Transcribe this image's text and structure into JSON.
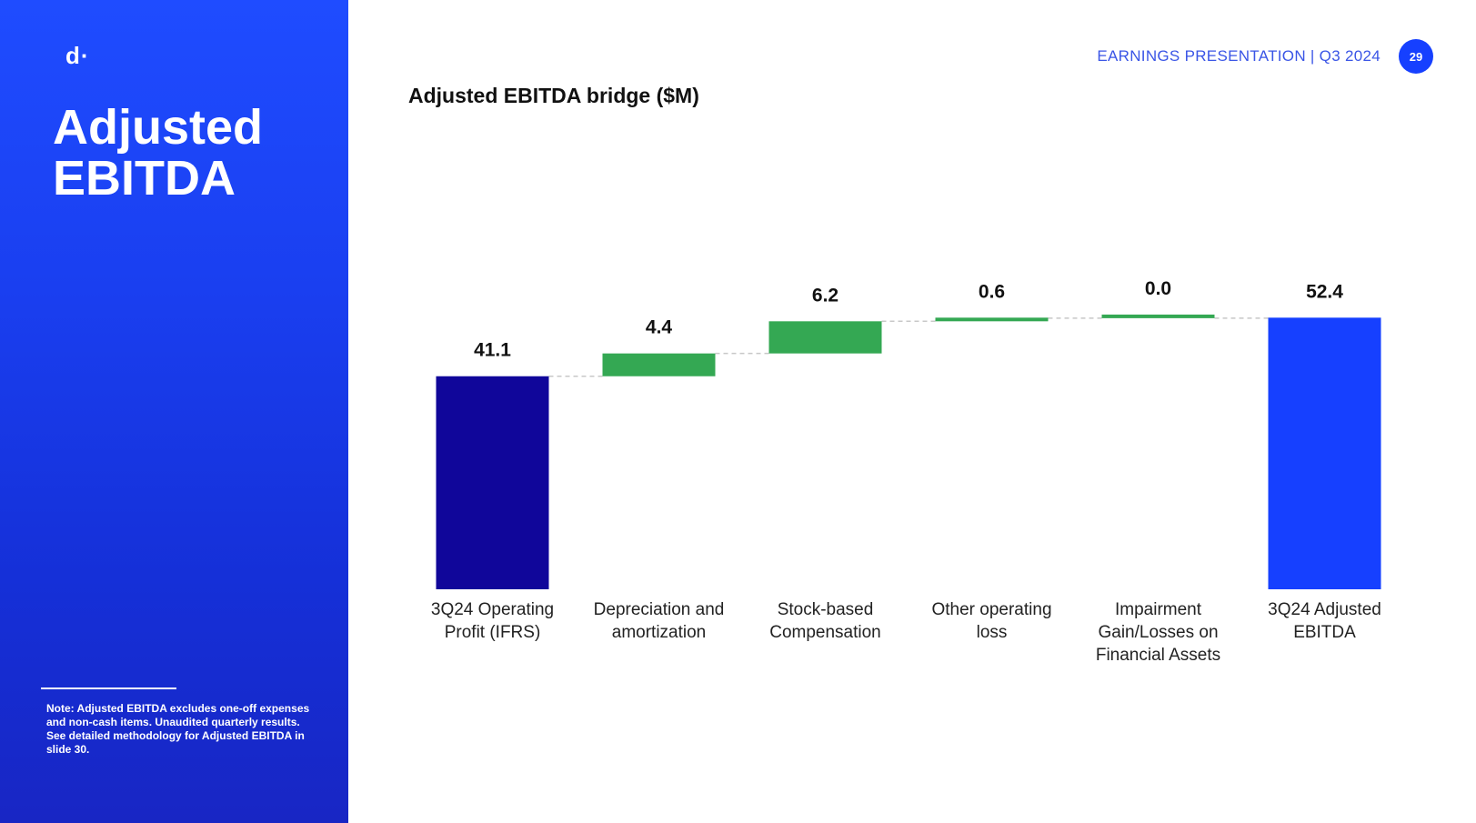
{
  "sidebar": {
    "logo": "d·",
    "title_line1": "Adjusted",
    "title_line2": "EBITDA",
    "note": "Note: Adjusted EBITDA excludes one-off expenses and non-cash items. Unaudited quarterly results. See detailed methodology for Adjusted EBITDA in slide 30."
  },
  "header": {
    "presentation_label": "EARNINGS PRESENTATION | Q3 2024",
    "page_number": "29"
  },
  "chart_data": {
    "type": "bar",
    "subtype": "waterfall",
    "title": "Adjusted EBITDA bridge ($M)",
    "categories": [
      [
        "3Q24 Operating",
        "Profit (IFRS)"
      ],
      [
        "Depreciation and",
        "amortization"
      ],
      [
        "Stock-based",
        "Compensation"
      ],
      [
        "Other operating",
        "loss"
      ],
      [
        "Impairment",
        "Gain/Losses on",
        "Financial Assets"
      ],
      [
        "3Q24 Adjusted",
        "EBITDA"
      ]
    ],
    "values": [
      41.1,
      4.4,
      6.2,
      0.6,
      0.0,
      52.4
    ],
    "labels": [
      "41.1",
      "4.4",
      "6.2",
      "0.6",
      "0.0",
      "52.4"
    ],
    "bar_kinds": [
      "total",
      "increase",
      "increase",
      "increase",
      "increase",
      "total"
    ],
    "colors": {
      "start_total": "#10069a",
      "increase": "#34a853",
      "end_total": "#1640ff",
      "connector": "#c8c8c8"
    },
    "ylim": [
      0,
      52.4
    ],
    "grid": false,
    "legend": "none"
  }
}
